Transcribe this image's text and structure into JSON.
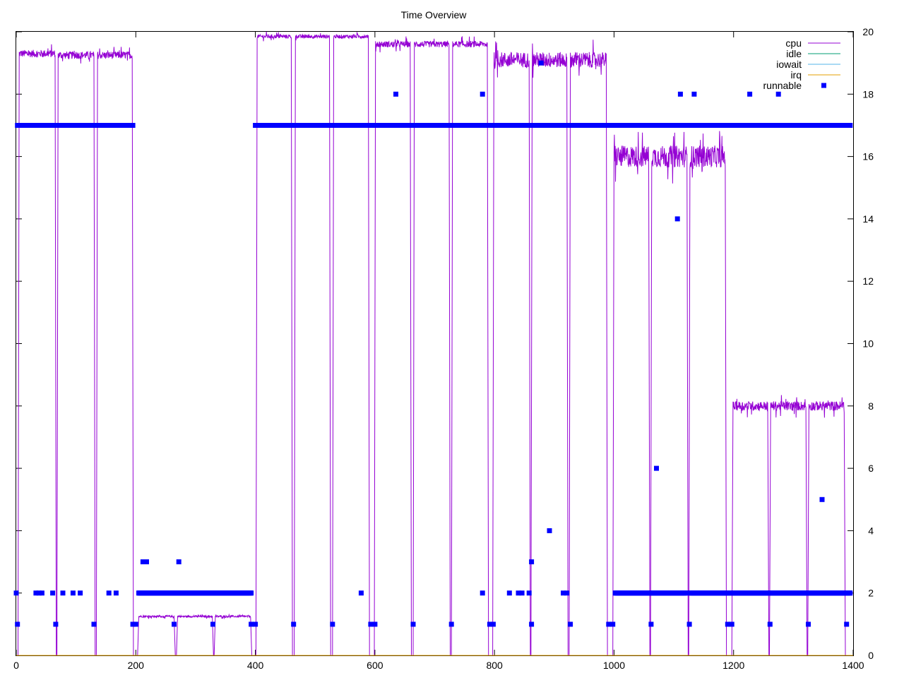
{
  "chart_data": {
    "type": "line",
    "title": "Time Overview",
    "xlabel": "",
    "ylabel": "",
    "xlim": [
      0,
      1400
    ],
    "ylim": [
      0,
      20
    ],
    "x_ticks": [
      "0",
      "200",
      "400",
      "600",
      "800",
      "1000",
      "1200",
      "1400"
    ],
    "y_ticks": [
      "0",
      "2",
      "4",
      "6",
      "8",
      "10",
      "12",
      "14",
      "16",
      "18",
      "20"
    ],
    "y_axis_side": "right",
    "grid": false,
    "legend_placement": "top-right",
    "series": [
      {
        "name": "cpu",
        "style": "line",
        "color": "#9400d3",
        "segments": [
          {
            "start": 5,
            "end": 65,
            "level": 19.3,
            "noise": 0.12
          },
          {
            "start": 70,
            "end": 130,
            "level": 19.25,
            "noise": 0.12
          },
          {
            "start": 136,
            "end": 194,
            "level": 19.25,
            "noise": 0.12
          },
          {
            "start": 205,
            "end": 264,
            "level": 1.25,
            "noise": 0.03
          },
          {
            "start": 270,
            "end": 328,
            "level": 1.25,
            "noise": 0.03
          },
          {
            "start": 333,
            "end": 392,
            "level": 1.25,
            "noise": 0.03
          },
          {
            "start": 403,
            "end": 460,
            "level": 19.85,
            "noise": 0.06
          },
          {
            "start": 467,
            "end": 524,
            "level": 19.85,
            "noise": 0.06
          },
          {
            "start": 531,
            "end": 589,
            "level": 19.85,
            "noise": 0.06
          },
          {
            "start": 601,
            "end": 659,
            "level": 19.6,
            "noise": 0.1
          },
          {
            "start": 666,
            "end": 724,
            "level": 19.6,
            "noise": 0.1
          },
          {
            "start": 730,
            "end": 788,
            "level": 19.6,
            "noise": 0.1
          },
          {
            "start": 799,
            "end": 858,
            "level": 19.1,
            "noise": 0.25
          },
          {
            "start": 863,
            "end": 921,
            "level": 19.1,
            "noise": 0.25
          },
          {
            "start": 927,
            "end": 987,
            "level": 19.1,
            "noise": 0.25
          },
          {
            "start": 1000,
            "end": 1058,
            "level": 16.0,
            "noise": 0.35
          },
          {
            "start": 1063,
            "end": 1122,
            "level": 16.0,
            "noise": 0.35
          },
          {
            "start": 1127,
            "end": 1186,
            "level": 16.0,
            "noise": 0.35
          },
          {
            "start": 1199,
            "end": 1257,
            "level": 8.0,
            "noise": 0.15
          },
          {
            "start": 1262,
            "end": 1321,
            "level": 8.0,
            "noise": 0.15
          },
          {
            "start": 1326,
            "end": 1385,
            "level": 8.0,
            "noise": 0.15
          }
        ]
      },
      {
        "name": "idle",
        "style": "line",
        "color": "#009e73",
        "values": []
      },
      {
        "name": "iowait",
        "style": "line",
        "color": "#56b4e9",
        "values": []
      },
      {
        "name": "irq",
        "style": "line",
        "color": "#e69f00",
        "values": [
          [
            0,
            0
          ],
          [
            1400,
            0
          ]
        ]
      },
      {
        "name": "runnable",
        "style": "points",
        "color": "#0000ff",
        "runs": [
          {
            "from": 2,
            "to": 195,
            "y": 17
          },
          {
            "from": 400,
            "to": 595,
            "y": 17
          },
          {
            "from": 600,
            "to": 795,
            "y": 17
          },
          {
            "from": 798,
            "to": 995,
            "y": 17
          },
          {
            "from": 1000,
            "to": 1192,
            "y": 17
          },
          {
            "from": 1196,
            "to": 1395,
            "y": 17
          },
          {
            "from": 205,
            "to": 393,
            "y": 2
          },
          {
            "from": 1002,
            "to": 1120,
            "y": 2
          },
          {
            "from": 1127,
            "to": 1192,
            "y": 2
          },
          {
            "from": 1196,
            "to": 1395,
            "y": 2
          }
        ],
        "points": [
          [
            0,
            2
          ],
          [
            33,
            2
          ],
          [
            38,
            2
          ],
          [
            43,
            2
          ],
          [
            61,
            2
          ],
          [
            78,
            2
          ],
          [
            95,
            2
          ],
          [
            107,
            2
          ],
          [
            155,
            2
          ],
          [
            167,
            2
          ],
          [
            577,
            2
          ],
          [
            780,
            2
          ],
          [
            825,
            2
          ],
          [
            840,
            2
          ],
          [
            846,
            2
          ],
          [
            858,
            2
          ],
          [
            915,
            2
          ],
          [
            921,
            2
          ],
          [
            2,
            1
          ],
          [
            66,
            1
          ],
          [
            130,
            1
          ],
          [
            195,
            1
          ],
          [
            200,
            1
          ],
          [
            264,
            1
          ],
          [
            329,
            1
          ],
          [
            393,
            1
          ],
          [
            400,
            1
          ],
          [
            464,
            1
          ],
          [
            529,
            1
          ],
          [
            593,
            1
          ],
          [
            600,
            1
          ],
          [
            664,
            1
          ],
          [
            728,
            1
          ],
          [
            792,
            1
          ],
          [
            798,
            1
          ],
          [
            862,
            1
          ],
          [
            927,
            1
          ],
          [
            991,
            1
          ],
          [
            998,
            1
          ],
          [
            1062,
            1
          ],
          [
            1126,
            1
          ],
          [
            1190,
            1
          ],
          [
            1197,
            1
          ],
          [
            1261,
            1
          ],
          [
            1325,
            1
          ],
          [
            1389,
            1
          ],
          [
            212,
            3
          ],
          [
            218,
            3
          ],
          [
            272,
            3
          ],
          [
            862,
            3
          ],
          [
            892,
            4
          ],
          [
            1071,
            6
          ],
          [
            1348,
            5
          ],
          [
            1106,
            14
          ],
          [
            635,
            18
          ],
          [
            780,
            18
          ],
          [
            1111,
            18
          ],
          [
            1134,
            18
          ],
          [
            1227,
            18
          ],
          [
            1275,
            18
          ],
          [
            878,
            19
          ]
        ]
      }
    ]
  }
}
